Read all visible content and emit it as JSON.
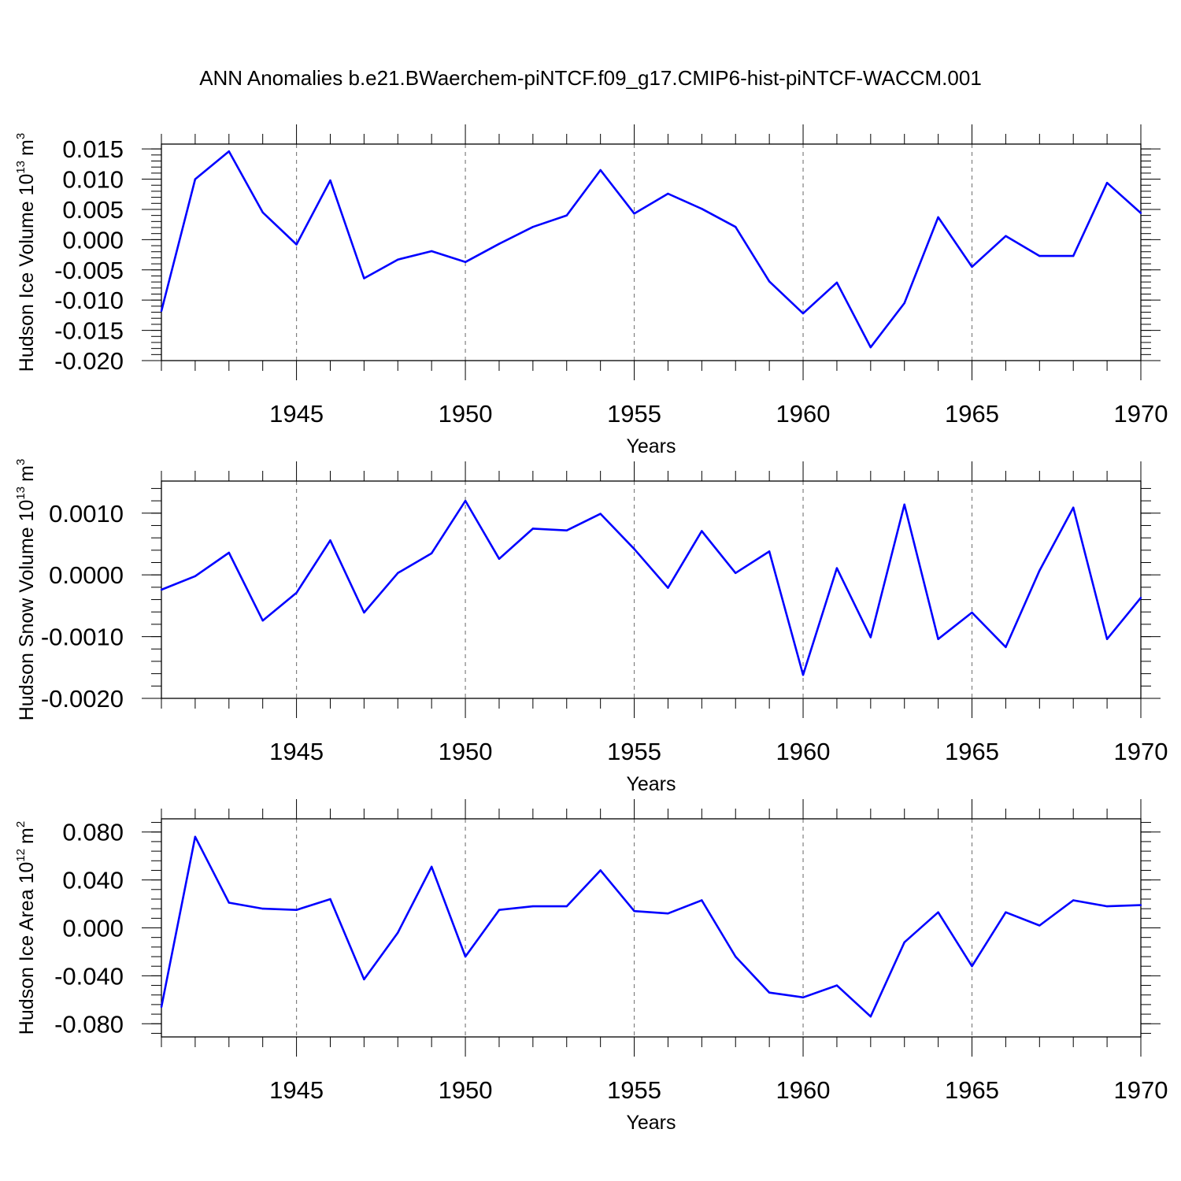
{
  "title": "ANN Anomalies b.e21.BWaerchem-piNTCF.f09_g17.CMIP6-hist-piNTCF-WACCM.001",
  "colors": {
    "line": "#0000ff",
    "axis": "#000000",
    "grid": "#808080"
  },
  "chart_data": [
    {
      "type": "line",
      "ylabel_main": "Hudson Ice Volume 10",
      "ylabel_exp": "13",
      "ylabel_unit": "m",
      "ylabel_unit_exp": "3",
      "xlabel": "Years",
      "xlim": [
        1941,
        1970
      ],
      "ylim": [
        -0.02,
        0.0158
      ],
      "yticks": [
        -0.02,
        -0.015,
        -0.01,
        -0.005,
        0.0,
        0.005,
        0.01,
        0.015
      ],
      "ytick_labels": [
        "-0.020",
        "-0.015",
        "-0.010",
        "-0.005",
        "0.000",
        "0.005",
        "0.010",
        "0.015"
      ],
      "yminor_step": 0.001,
      "xticks": [
        1945,
        1950,
        1955,
        1960,
        1965,
        1970
      ],
      "xtick_labels": [
        "1945",
        "1950",
        "1955",
        "1960",
        "1965",
        "1970"
      ],
      "x": [
        1941,
        1942,
        1943,
        1944,
        1945,
        1946,
        1947,
        1948,
        1949,
        1950,
        1951,
        1952,
        1953,
        1954,
        1955,
        1956,
        1957,
        1958,
        1959,
        1960,
        1961,
        1962,
        1963,
        1964,
        1965,
        1966,
        1967,
        1968,
        1969,
        1970
      ],
      "values": [
        -0.0118,
        0.01,
        0.0146,
        0.0045,
        -0.0008,
        0.0098,
        -0.0064,
        -0.0033,
        -0.0019,
        -0.0037,
        -0.0007,
        0.0021,
        0.004,
        0.0115,
        0.0043,
        0.0076,
        0.0051,
        0.0021,
        -0.0069,
        -0.0122,
        -0.0071,
        -0.0178,
        -0.0105,
        0.0037,
        -0.0045,
        0.0006,
        -0.0027,
        -0.0027,
        0.0094,
        0.0044
      ]
    },
    {
      "type": "line",
      "ylabel_main": "Hudson Snow Volume 10",
      "ylabel_exp": "13",
      "ylabel_unit": "m",
      "ylabel_unit_exp": "3",
      "xlabel": "Years",
      "xlim": [
        1941,
        1970
      ],
      "ylim": [
        -0.002,
        0.00152
      ],
      "yticks": [
        -0.002,
        -0.001,
        0.0,
        0.001
      ],
      "ytick_labels": [
        "-0.0020",
        "-0.0010",
        "0.0000",
        "0.0010"
      ],
      "yminor_step": 0.0002,
      "xticks": [
        1945,
        1950,
        1955,
        1960,
        1965,
        1970
      ],
      "xtick_labels": [
        "1945",
        "1950",
        "1955",
        "1960",
        "1965",
        "1970"
      ],
      "x": [
        1941,
        1942,
        1943,
        1944,
        1945,
        1946,
        1947,
        1948,
        1949,
        1950,
        1951,
        1952,
        1953,
        1954,
        1955,
        1956,
        1957,
        1958,
        1959,
        1960,
        1961,
        1962,
        1963,
        1964,
        1965,
        1966,
        1967,
        1968,
        1969,
        1970
      ],
      "values": [
        -0.00024,
        -2e-05,
        0.00036,
        -0.00074,
        -0.00029,
        0.00056,
        -0.00061,
        3e-05,
        0.00035,
        0.0012,
        0.00026,
        0.00075,
        0.00072,
        0.00099,
        0.00042,
        -0.00021,
        0.00071,
        3e-05,
        0.00038,
        -0.00162,
        0.00011,
        -0.00101,
        0.00114,
        -0.00104,
        -0.00061,
        -0.00117,
        7e-05,
        0.00109,
        -0.00104,
        -0.00037
      ]
    },
    {
      "type": "line",
      "ylabel_main": "Hudson Ice Area 10",
      "ylabel_exp": "12",
      "ylabel_unit": "m",
      "ylabel_unit_exp": "2",
      "xlabel": "Years",
      "xlim": [
        1941,
        1970
      ],
      "ylim": [
        -0.091,
        0.091
      ],
      "yticks": [
        -0.08,
        -0.04,
        0.0,
        0.04,
        0.08
      ],
      "ytick_labels": [
        "-0.080",
        "-0.040",
        "0.000",
        "0.040",
        "0.080"
      ],
      "yminor_step": 0.008,
      "xticks": [
        1945,
        1950,
        1955,
        1960,
        1965,
        1970
      ],
      "xtick_labels": [
        "1945",
        "1950",
        "1955",
        "1960",
        "1965",
        "1970"
      ],
      "x": [
        1941,
        1942,
        1943,
        1944,
        1945,
        1946,
        1947,
        1948,
        1949,
        1950,
        1951,
        1952,
        1953,
        1954,
        1955,
        1956,
        1957,
        1958,
        1959,
        1960,
        1961,
        1962,
        1963,
        1964,
        1965,
        1966,
        1967,
        1968,
        1969,
        1970
      ],
      "values": [
        -0.066,
        0.076,
        0.021,
        0.016,
        0.015,
        0.024,
        -0.043,
        -0.004,
        0.051,
        -0.024,
        0.015,
        0.018,
        0.018,
        0.048,
        0.014,
        0.012,
        0.023,
        -0.024,
        -0.054,
        -0.058,
        -0.048,
        -0.074,
        -0.012,
        0.013,
        -0.032,
        0.013,
        0.002,
        0.023,
        0.018,
        0.019
      ]
    }
  ]
}
